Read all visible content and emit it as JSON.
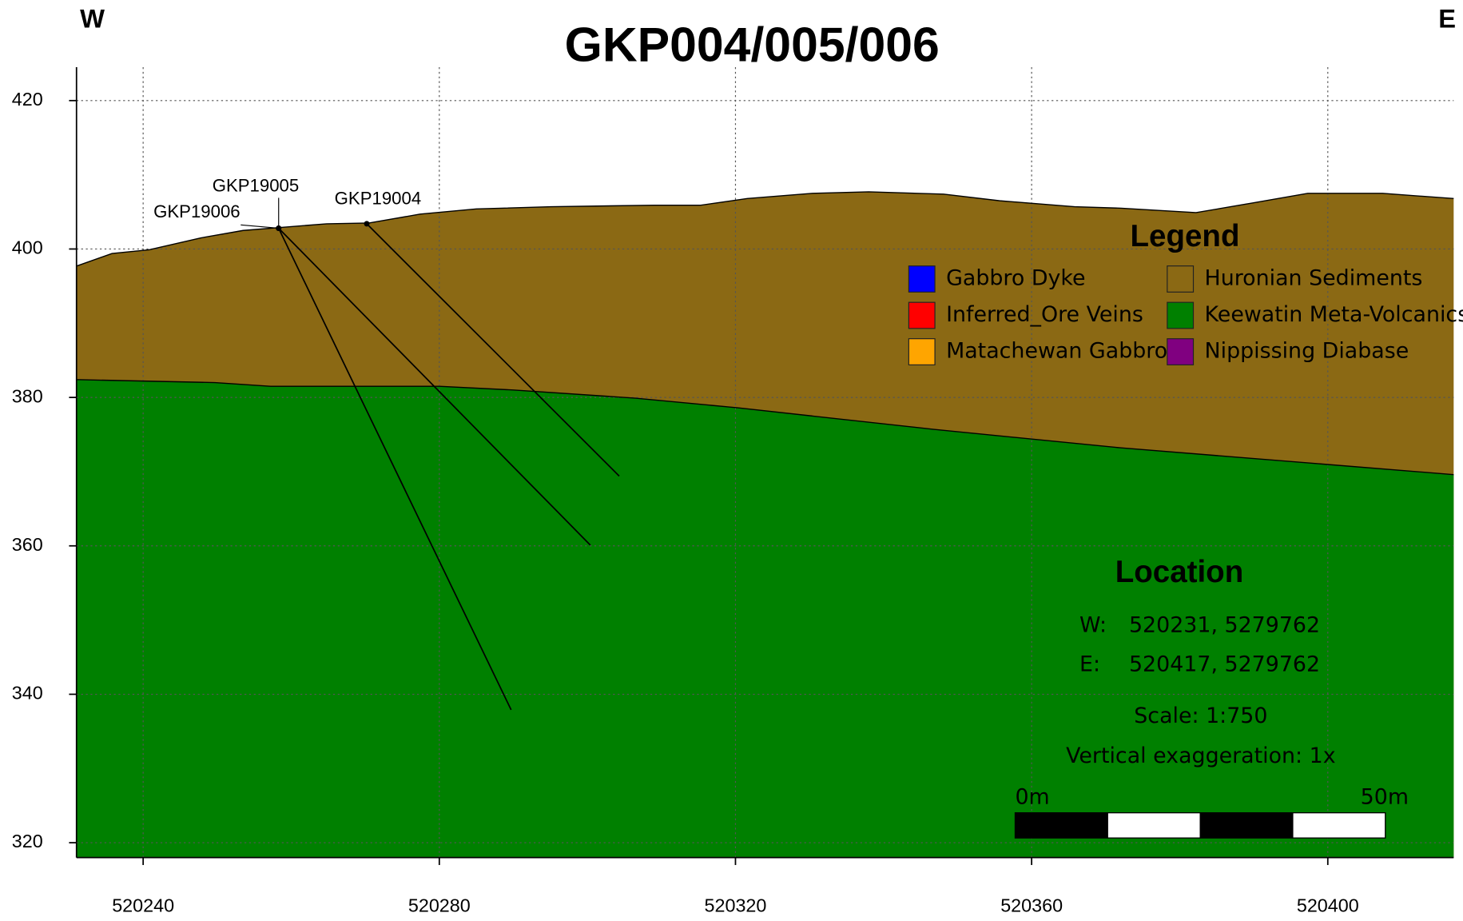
{
  "chart_data": {
    "type": "section",
    "title": "GKP004/005/006",
    "corner_labels": {
      "left": "W",
      "right": "E"
    },
    "xlim": [
      520231,
      520417
    ],
    "ylim": [
      318,
      424.5
    ],
    "xticks": [
      520240,
      520280,
      520320,
      520360,
      520400
    ],
    "yticks": [
      320,
      340,
      360,
      380,
      400,
      420
    ],
    "grid": true,
    "legend_title": "Legend",
    "legend": [
      {
        "name": "Gabbro Dyke",
        "color": "#0000ff"
      },
      {
        "name": "Huronian Sediments",
        "color": "#8b6914",
        "x": [
          520231,
          520235.8,
          520240.8,
          520247.8,
          520253.5,
          520258.5,
          520264.8,
          520270.5,
          520277.4,
          520285,
          520295.1,
          520309,
          520315.3,
          520321.6,
          520330.4,
          520338,
          520348.1,
          520355.7,
          520365.8,
          520372.1,
          520382.2,
          520389.8,
          520397.3,
          520407.4,
          520417
        ],
        "values": [
          397.7,
          399.4,
          399.9,
          401.5,
          402.5,
          402.9,
          403.4,
          403.5,
          404.7,
          405.4,
          405.7,
          405.9,
          405.9,
          406.8,
          407.5,
          407.7,
          407.4,
          406.5,
          405.7,
          405.5,
          404.9,
          406.2,
          407.5,
          407.5,
          406.8
        ]
      },
      {
        "name": "Inferred_Ore Veins",
        "color": "#ff0000"
      },
      {
        "name": "Keewatin Meta-Volcanics",
        "color": "#008000",
        "x": [
          520231,
          520249.7,
          520257.2,
          520280,
          520290,
          520306.5,
          520320.3,
          520346.8,
          520372.1,
          520417
        ],
        "values": [
          382.4,
          382.0,
          381.5,
          381.5,
          381.0,
          379.9,
          378.6,
          375.7,
          373.2,
          369.6
        ]
      },
      {
        "name": "Matachewan Gabbro",
        "color": "#ffa500"
      },
      {
        "name": "Nippissing Diabase",
        "color": "#800080"
      }
    ],
    "holes": [
      {
        "name": "GKP19006",
        "x": [
          520258.3,
          520289.7
        ],
        "values": [
          402.8,
          337.9
        ]
      },
      {
        "name": "GKP19005",
        "x": [
          520258.3,
          520300.4
        ],
        "values": [
          402.8,
          360.1
        ]
      },
      {
        "name": "GKP19004",
        "x": [
          520270.2,
          520304.3
        ],
        "values": [
          403.4,
          369.4
        ]
      }
    ],
    "location": {
      "title": "Location",
      "rows": [
        [
          "W:",
          "520231, 5279762"
        ],
        [
          "E:",
          "520417, 5279762"
        ]
      ],
      "scale": "Scale: 1:750",
      "exaggeration": "Vertical exaggeration: 1x",
      "scale_bar": [
        {
          "value": 0,
          "label": "0m"
        },
        {
          "value": 50,
          "label": "50m"
        }
      ]
    }
  }
}
